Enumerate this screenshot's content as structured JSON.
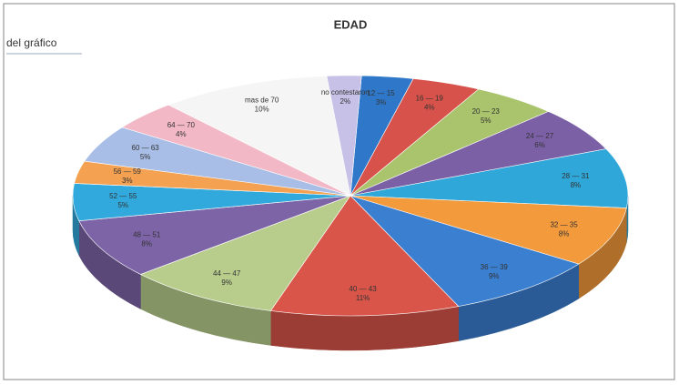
{
  "chart_data": {
    "type": "pie",
    "title": "EDAD",
    "subtitle": "del gráfico",
    "categories": [
      "12 — 15",
      "16 — 19",
      "20 — 23",
      "24 — 27",
      "28 — 31",
      "32 — 35",
      "36 — 39",
      "40 — 43",
      "44 — 47",
      "48 — 51",
      "52 — 55",
      "56 — 59",
      "60 — 63",
      "64 — 70",
      "mas de 70",
      "no contestaron"
    ],
    "values": [
      3,
      4,
      5,
      6,
      8,
      8,
      9,
      11,
      9,
      8,
      5,
      3,
      5,
      4,
      10,
      2
    ],
    "value_labels": [
      "3%",
      "4%",
      "5%",
      "6%",
      "8%",
      "8%",
      "9%",
      "11%",
      "9%",
      "8%",
      "5%",
      "3%",
      "5%",
      "4%",
      "10%",
      "2%"
    ],
    "colors": [
      "#2f78c9",
      "#d6524a",
      "#a9c46c",
      "#7c60a6",
      "#2fa7d9",
      "#f39a3c",
      "#3a7fd0",
      "#d95549",
      "#b8cd8c",
      "#7d64a7",
      "#31a9dc",
      "#f4a152",
      "#a8bee6",
      "#f2b8c6",
      "#f5f5f5",
      "#c7c1e7"
    ]
  }
}
